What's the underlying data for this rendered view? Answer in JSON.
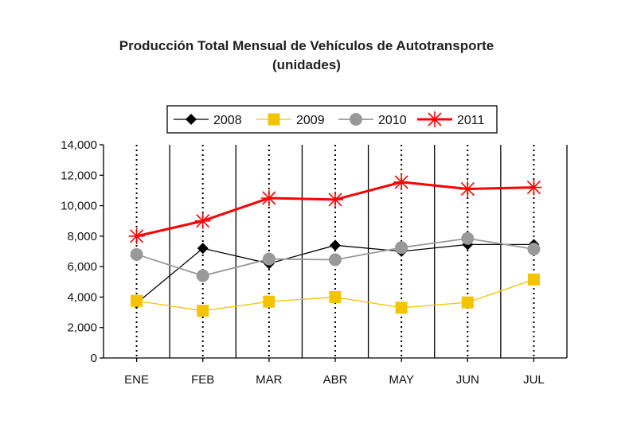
{
  "chart_data": {
    "type": "line",
    "title": "Producción Total Mensual de Vehículos de Autotransporte",
    "subtitle": "(unidades)",
    "xlabel": "",
    "ylabel": "",
    "categories": [
      "ENE",
      "FEB",
      "MAR",
      "ABR",
      "MAY",
      "JUN",
      "JUL"
    ],
    "ylim": [
      0,
      14000
    ],
    "yticks": [
      0,
      2000,
      4000,
      6000,
      8000,
      10000,
      12000,
      14000
    ],
    "ytick_labels": [
      "0",
      "2,000",
      "4,000",
      "6,000",
      "8,000",
      "10,000",
      "12,000",
      "14,000"
    ],
    "legend_position": "top",
    "grid": "vertical",
    "series": [
      {
        "name": "2008",
        "color": "#000000",
        "marker": "diamond",
        "values": [
          3600,
          7200,
          6200,
          7400,
          7000,
          7450,
          7450
        ]
      },
      {
        "name": "2009",
        "color": "#f5c400",
        "marker": "square",
        "values": [
          3750,
          3100,
          3700,
          4000,
          3300,
          3650,
          5150
        ]
      },
      {
        "name": "2010",
        "color": "#999999",
        "marker": "circle",
        "values": [
          6800,
          5400,
          6500,
          6450,
          7250,
          7850,
          7150
        ]
      },
      {
        "name": "2011",
        "color": "#ff0000",
        "marker": "star",
        "values": [
          8000,
          9000,
          10500,
          10400,
          11550,
          11100,
          11200
        ]
      }
    ]
  }
}
